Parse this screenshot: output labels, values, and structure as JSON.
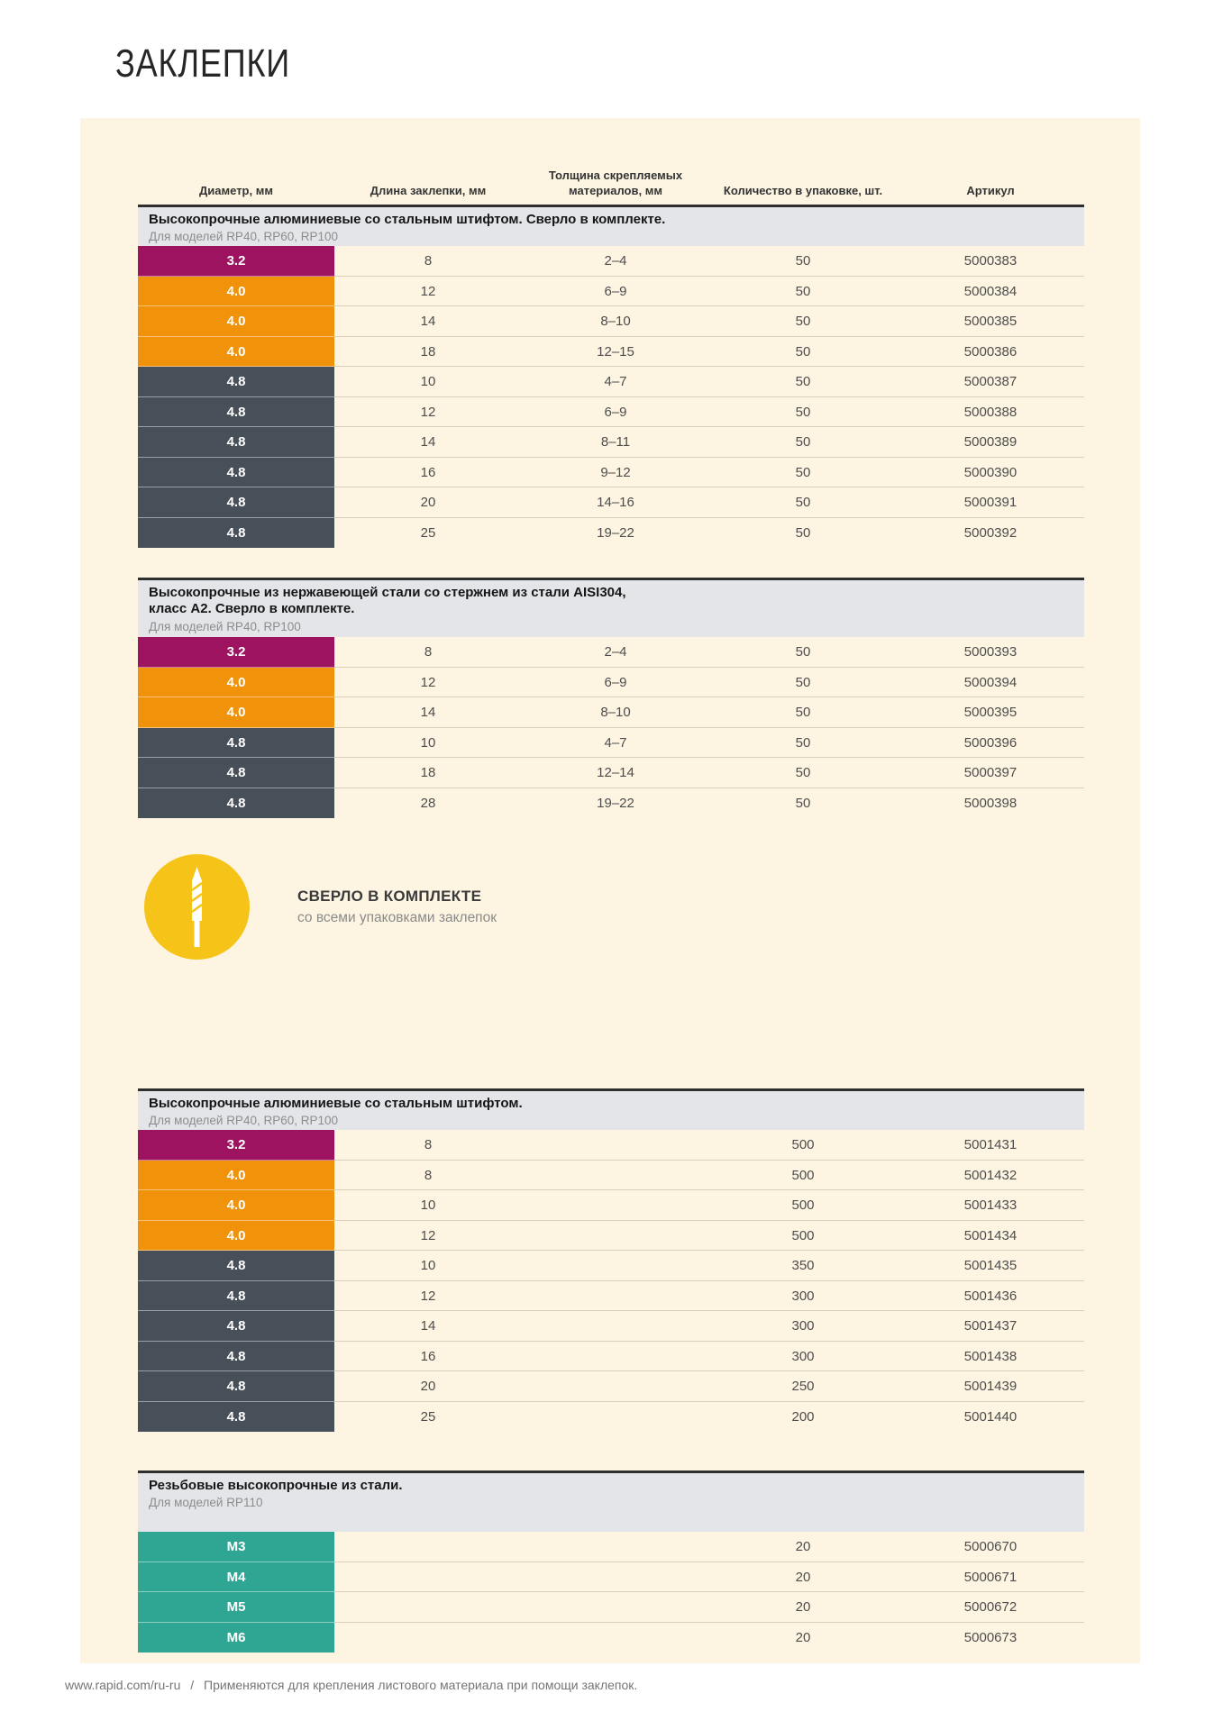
{
  "page": {
    "title": "ЗАКЛЕПКИ",
    "footer": {
      "url": "www.rapid.com/ru-ru",
      "separator": "/",
      "note": "Применяются для крепления листового материала при помощи заклепок."
    }
  },
  "table": {
    "columns": [
      "Диаметр, мм",
      "Длина заклепки, мм",
      "Толщина скрепляемых материалов, мм",
      "Количество в упаковке, шт.",
      "Артикул"
    ]
  },
  "colors": {
    "magenta": "#9e135f",
    "orange": "#f0930a",
    "slate": "#475058",
    "teal": "#2fa694",
    "yellow": "#f6c419"
  },
  "badge": {
    "icon": "drill-bit-icon",
    "label": "СВЕРЛО В КОМПЛЕКТЕ",
    "sublabel": "со всеми упаковками заклепок"
  },
  "sections": [
    {
      "title_lines": [
        "Высокопрочные алюминиевые со стальным штифтом. Сверло в комплекте."
      ],
      "subtitle": "Для моделей RP40, RP60, RP100",
      "rows": [
        {
          "diameter": "3.2",
          "color": "magenta",
          "length": "8",
          "thickness": "2–4",
          "qty": "50",
          "article": "5000383"
        },
        {
          "diameter": "4.0",
          "color": "orange",
          "length": "12",
          "thickness": "6–9",
          "qty": "50",
          "article": "5000384"
        },
        {
          "diameter": "4.0",
          "color": "orange",
          "length": "14",
          "thickness": "8–10",
          "qty": "50",
          "article": "5000385"
        },
        {
          "diameter": "4.0",
          "color": "orange",
          "length": "18",
          "thickness": "12–15",
          "qty": "50",
          "article": "5000386"
        },
        {
          "diameter": "4.8",
          "color": "slate",
          "length": "10",
          "thickness": "4–7",
          "qty": "50",
          "article": "5000387"
        },
        {
          "diameter": "4.8",
          "color": "slate",
          "length": "12",
          "thickness": "6–9",
          "qty": "50",
          "article": "5000388"
        },
        {
          "diameter": "4.8",
          "color": "slate",
          "length": "14",
          "thickness": "8–11",
          "qty": "50",
          "article": "5000389"
        },
        {
          "diameter": "4.8",
          "color": "slate",
          "length": "16",
          "thickness": "9–12",
          "qty": "50",
          "article": "5000390"
        },
        {
          "diameter": "4.8",
          "color": "slate",
          "length": "20",
          "thickness": "14–16",
          "qty": "50",
          "article": "5000391"
        },
        {
          "diameter": "4.8",
          "color": "slate",
          "length": "25",
          "thickness": "19–22",
          "qty": "50",
          "article": "5000392"
        }
      ]
    },
    {
      "title_lines": [
        "Высокопрочные из нержавеющей стали со стержнем из стали AISI304,",
        "класс А2. Сверло в комплекте."
      ],
      "subtitle": "Для моделей RP40, RP100",
      "rows": [
        {
          "diameter": "3.2",
          "color": "magenta",
          "length": "8",
          "thickness": "2–4",
          "qty": "50",
          "article": "5000393"
        },
        {
          "diameter": "4.0",
          "color": "orange",
          "length": "12",
          "thickness": "6–9",
          "qty": "50",
          "article": "5000394"
        },
        {
          "diameter": "4.0",
          "color": "orange",
          "length": "14",
          "thickness": "8–10",
          "qty": "50",
          "article": "5000395"
        },
        {
          "diameter": "4.8",
          "color": "slate",
          "length": "10",
          "thickness": "4–7",
          "qty": "50",
          "article": "5000396"
        },
        {
          "diameter": "4.8",
          "color": "slate",
          "length": "18",
          "thickness": "12–14",
          "qty": "50",
          "article": "5000397"
        },
        {
          "diameter": "4.8",
          "color": "slate",
          "length": "28",
          "thickness": "19–22",
          "qty": "50",
          "article": "5000398"
        }
      ]
    },
    {
      "title_lines": [
        "Высокопрочные алюминиевые со стальным штифтом."
      ],
      "subtitle": "Для моделей RP40, RP60, RP100",
      "rows": [
        {
          "diameter": "3.2",
          "color": "magenta",
          "length": "8",
          "thickness": "",
          "qty": "500",
          "article": "5001431"
        },
        {
          "diameter": "4.0",
          "color": "orange",
          "length": "8",
          "thickness": "",
          "qty": "500",
          "article": "5001432"
        },
        {
          "diameter": "4.0",
          "color": "orange",
          "length": "10",
          "thickness": "",
          "qty": "500",
          "article": "5001433"
        },
        {
          "diameter": "4.0",
          "color": "orange",
          "length": "12",
          "thickness": "",
          "qty": "500",
          "article": "5001434"
        },
        {
          "diameter": "4.8",
          "color": "slate",
          "length": "10",
          "thickness": "",
          "qty": "350",
          "article": "5001435"
        },
        {
          "diameter": "4.8",
          "color": "slate",
          "length": "12",
          "thickness": "",
          "qty": "300",
          "article": "5001436"
        },
        {
          "diameter": "4.8",
          "color": "slate",
          "length": "14",
          "thickness": "",
          "qty": "300",
          "article": "5001437"
        },
        {
          "diameter": "4.8",
          "color": "slate",
          "length": "16",
          "thickness": "",
          "qty": "300",
          "article": "5001438"
        },
        {
          "diameter": "4.8",
          "color": "slate",
          "length": "20",
          "thickness": "",
          "qty": "250",
          "article": "5001439"
        },
        {
          "diameter": "4.8",
          "color": "slate",
          "length": "25",
          "thickness": "",
          "qty": "200",
          "article": "5001440"
        }
      ]
    },
    {
      "title_lines": [
        "Резьбовые высокопрочные из стали."
      ],
      "subtitle": "Для моделей RP110",
      "rows": [
        {
          "diameter": "M3",
          "color": "teal",
          "length": "",
          "thickness": "",
          "qty": "20",
          "article": "5000670"
        },
        {
          "diameter": "M4",
          "color": "teal",
          "length": "",
          "thickness": "",
          "qty": "20",
          "article": "5000671"
        },
        {
          "diameter": "M5",
          "color": "teal",
          "length": "",
          "thickness": "",
          "qty": "20",
          "article": "5000672"
        },
        {
          "diameter": "M6",
          "color": "teal",
          "length": "",
          "thickness": "",
          "qty": "20",
          "article": "5000673"
        }
      ]
    }
  ]
}
